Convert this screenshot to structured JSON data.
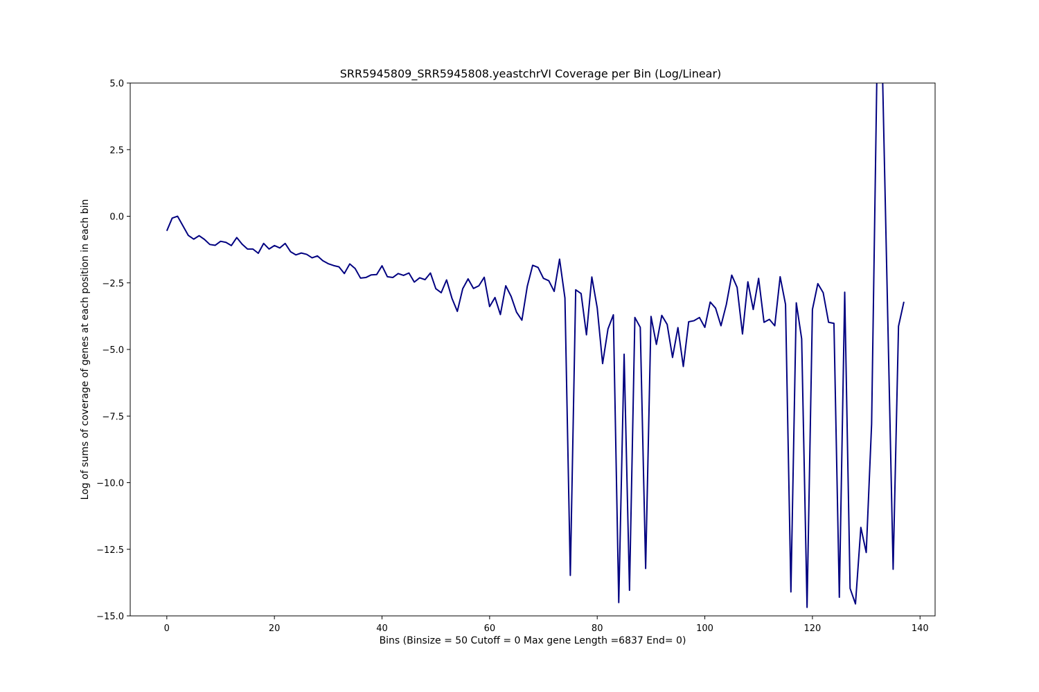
{
  "chart_data": {
    "type": "line",
    "title": "SRR5945809_SRR5945808.yeastchrVI Coverage per Bin (Log/Linear)",
    "xlabel": "Bins  (Binsize = 50 Cutoff = 0 Max gene Length =6837 End= 0)",
    "ylabel": "Log of sums of coverage of genes at each position in each bin",
    "xlim": [
      -6.8,
      142.8
    ],
    "ylim": [
      -15,
      5
    ],
    "xticks": [
      0,
      20,
      40,
      60,
      80,
      100,
      120,
      140
    ],
    "xtick_labels": [
      "0",
      "20",
      "40",
      "60",
      "80",
      "100",
      "120",
      "140"
    ],
    "yticks": [
      5,
      2.5,
      0,
      -2.5,
      -5,
      -7.5,
      -10,
      -12.5,
      -15
    ],
    "ytick_labels": [
      "5.0",
      "2.5",
      "0.0",
      "−2.5",
      "−5.0",
      "−7.5",
      "−10.0",
      "−12.5",
      "−15.0"
    ],
    "grid": false,
    "series": [
      {
        "color": "#000080",
        "values": [
          -0.55,
          -0.07,
          0,
          -0.36,
          -0.72,
          -0.86,
          -0.73,
          -0.87,
          -1.06,
          -1.09,
          -0.94,
          -0.98,
          -1.1,
          -0.8,
          -1.05,
          -1.23,
          -1.23,
          -1.39,
          -1.02,
          -1.23,
          -1.1,
          -1.19,
          -1.02,
          -1.33,
          -1.45,
          -1.38,
          -1.43,
          -1.56,
          -1.49,
          -1.67,
          -1.78,
          -1.85,
          -1.9,
          -2.15,
          -1.79,
          -1.96,
          -2.32,
          -2.3,
          -2.2,
          -2.19,
          -1.86,
          -2.27,
          -2.3,
          -2.15,
          -2.22,
          -2.13,
          -2.47,
          -2.31,
          -2.38,
          -2.13,
          -2.72,
          -2.87,
          -2.39,
          -3.08,
          -3.57,
          -2.72,
          -2.35,
          -2.71,
          -2.61,
          -2.29,
          -3.39,
          -3.05,
          -3.69,
          -2.61,
          -3.01,
          -3.6,
          -3.9,
          -2.63,
          -1.84,
          -1.92,
          -2.33,
          -2.42,
          -2.82,
          -1.61,
          -3.07,
          -13.48,
          -2.76,
          -2.9,
          -4.45,
          -2.28,
          -3.44,
          -5.53,
          -4.23,
          -3.7,
          -14.5,
          -5.18,
          -14.04,
          -3.8,
          -4.17,
          -13.22,
          -3.76,
          -4.81,
          -3.72,
          -4.06,
          -5.3,
          -4.18,
          -5.64,
          -3.96,
          -3.92,
          -3.8,
          -4.17,
          -3.22,
          -3.45,
          -4.11,
          -3.31,
          -2.21,
          -2.67,
          -4.42,
          -2.46,
          -3.5,
          -2.33,
          -3.98,
          -3.87,
          -4.11,
          -2.27,
          -3.31,
          -14.1,
          -3.25,
          -4.6,
          -14.68,
          -3.5,
          -2.53,
          -2.87,
          -3.98,
          -4.02,
          -14.3,
          -2.85,
          -13.97,
          -14.55,
          -11.68,
          -12.62,
          -7.8,
          5.6,
          5.6,
          -3.8,
          -13.25,
          -4.13,
          -3.21
        ]
      }
    ]
  }
}
